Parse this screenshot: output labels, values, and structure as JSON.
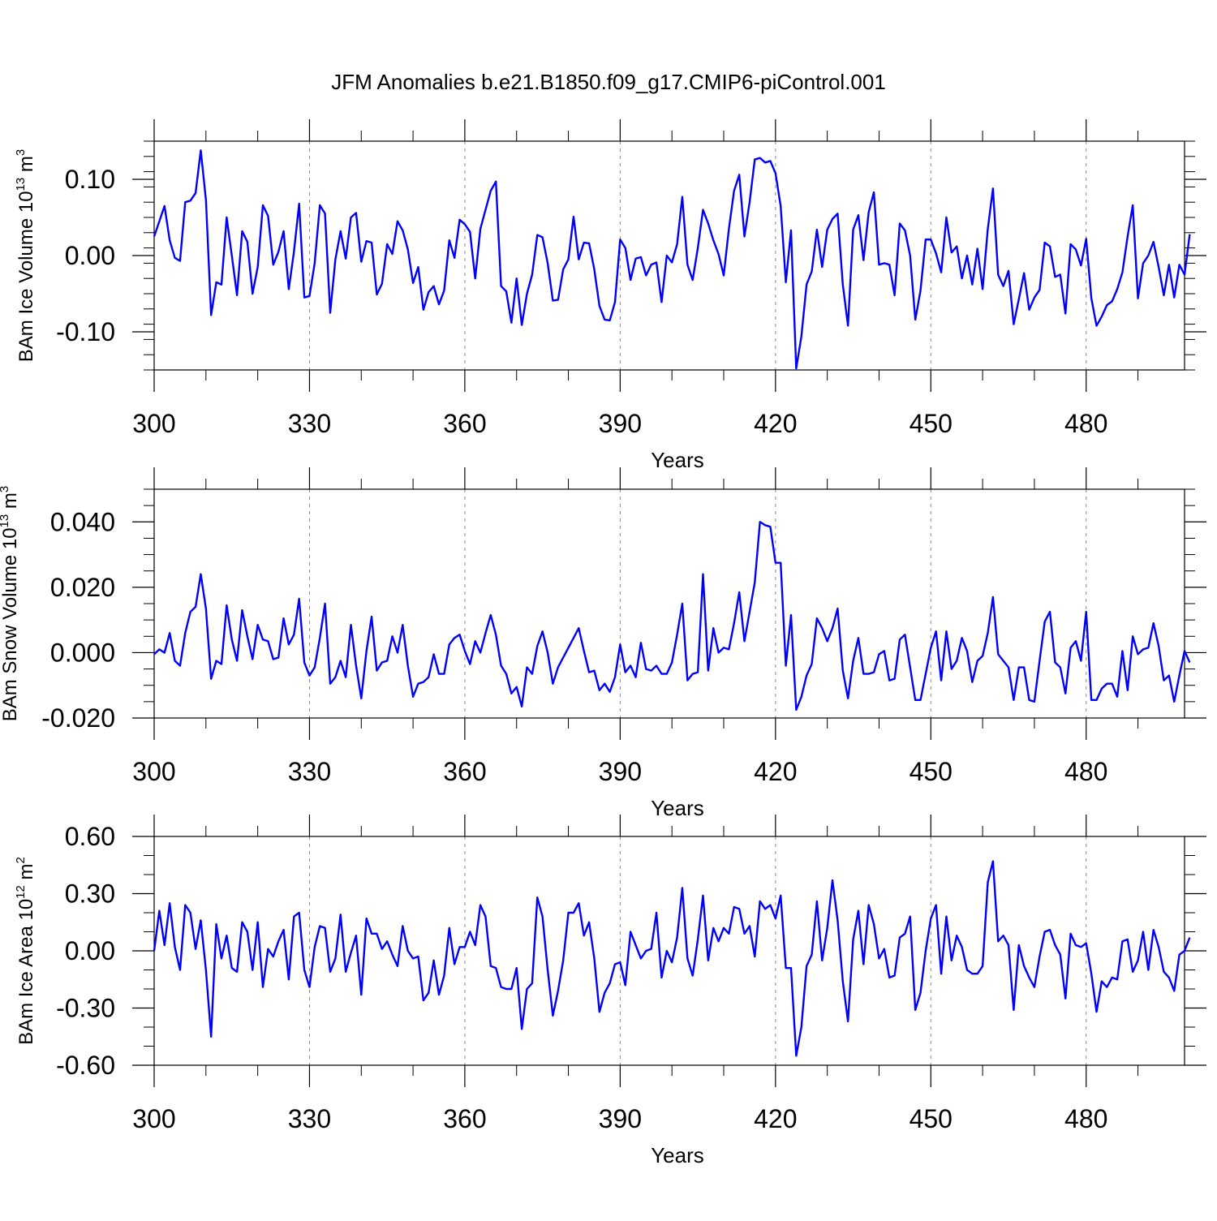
{
  "figure": {
    "title": "JFM Anomalies b.e21.B1850.f09_g17.CMIP6-piControl.001"
  },
  "colors": {
    "line": "#0000ff",
    "axis": "#000000",
    "grid": "#888888"
  },
  "chart_data": [
    {
      "type": "line",
      "ylabel": "BAm Ice Volume 10",
      "ylabel_exp": "13",
      "ylabel_unit": " m",
      "unit_exp": "3",
      "xlabel": "Years",
      "xlim": [
        300,
        499
      ],
      "ylim": [
        -0.15,
        0.15
      ],
      "xticks": [
        300,
        330,
        360,
        390,
        420,
        450,
        480
      ],
      "xtick_labels": [
        "300",
        "330",
        "360",
        "390",
        "420",
        "450",
        "480"
      ],
      "yticks": [
        0.1,
        0.0,
        -0.1
      ],
      "ytick_labels": [
        "0.10",
        "0.00",
        "-0.10"
      ],
      "yminor_step": 0.02,
      "grid": "dashed vertical at major x ticks",
      "series": [
        {
          "name": "Ice Volume",
          "x_start": 300,
          "values": [
            0.025,
            0.045,
            0.065,
            0.02,
            -0.003,
            -0.007,
            0.07,
            0.072,
            0.082,
            0.138,
            0.073,
            -0.078,
            -0.035,
            -0.038,
            0.05,
            0.0,
            -0.052,
            0.032,
            0.018,
            -0.05,
            -0.015,
            0.066,
            0.052,
            -0.012,
            0.005,
            0.032,
            -0.044,
            0.005,
            0.068,
            -0.055,
            -0.053,
            -0.01,
            0.066,
            0.055,
            -0.075,
            -0.005,
            0.032,
            -0.004,
            0.05,
            0.056,
            -0.008,
            0.019,
            0.017,
            -0.051,
            -0.037,
            0.015,
            0.002,
            0.045,
            0.033,
            0.008,
            -0.036,
            -0.015,
            -0.071,
            -0.048,
            -0.04,
            -0.064,
            -0.046,
            0.02,
            -0.003,
            0.047,
            0.041,
            0.031,
            -0.03,
            0.035,
            0.06,
            0.085,
            0.097,
            -0.04,
            -0.047,
            -0.088,
            -0.03,
            -0.091,
            -0.05,
            -0.025,
            0.027,
            0.024,
            -0.01,
            -0.059,
            -0.058,
            -0.018,
            -0.005,
            0.051,
            -0.005,
            0.017,
            0.016,
            -0.018,
            -0.066,
            -0.084,
            -0.085,
            -0.061,
            0.021,
            0.01,
            -0.032,
            -0.004,
            -0.002,
            -0.026,
            -0.012,
            -0.009,
            -0.061,
            0.0,
            -0.009,
            0.015,
            0.077,
            -0.012,
            -0.032,
            0.01,
            0.06,
            0.042,
            0.02,
            0.002,
            -0.026,
            0.035,
            0.085,
            0.106,
            0.025,
            0.07,
            0.126,
            0.128,
            0.122,
            0.124,
            0.108,
            0.065,
            -0.035,
            0.033,
            -0.148,
            -0.106,
            -0.038,
            -0.021,
            0.034,
            -0.015,
            0.034,
            0.048,
            0.055,
            -0.038,
            -0.092,
            0.034,
            0.053,
            -0.006,
            0.057,
            0.083,
            -0.012,
            -0.01,
            -0.012,
            -0.052,
            0.042,
            0.033,
            0.0,
            -0.084,
            -0.046,
            0.021,
            0.021,
            0.003,
            -0.022,
            0.05,
            0.004,
            0.012,
            -0.03,
            0.0,
            -0.038,
            0.009,
            -0.044,
            0.035,
            0.088,
            -0.025,
            -0.04,
            -0.02,
            -0.09,
            -0.057,
            -0.023,
            -0.071,
            -0.055,
            -0.045,
            0.017,
            0.012,
            -0.028,
            -0.025,
            -0.076,
            0.015,
            0.008,
            -0.013,
            0.022,
            -0.056,
            -0.092,
            -0.08,
            -0.065,
            -0.06,
            -0.044,
            -0.022,
            0.025,
            0.066,
            -0.056,
            -0.01,
            0.0,
            0.018,
            -0.015,
            -0.052,
            -0.012,
            -0.055,
            -0.012,
            -0.025,
            0.028
          ]
        }
      ]
    },
    {
      "type": "line",
      "ylabel": "BAm Snow Volume 10",
      "ylabel_exp": "13",
      "ylabel_unit": " m",
      "unit_exp": "3",
      "xlabel": "Years",
      "xlim": [
        300,
        499
      ],
      "ylim": [
        -0.02,
        0.05
      ],
      "xticks": [
        300,
        330,
        360,
        390,
        420,
        450,
        480
      ],
      "xtick_labels": [
        "300",
        "330",
        "360",
        "390",
        "420",
        "450",
        "480"
      ],
      "yticks": [
        0.04,
        0.02,
        0.0,
        -0.02
      ],
      "ytick_labels": [
        "0.040",
        "0.020",
        "0.000",
        "-0.020"
      ],
      "yminor_step": 0.005,
      "grid": "dashed vertical at major x ticks",
      "series": [
        {
          "name": "Snow Volume",
          "x_start": 300,
          "values": [
            -0.0005,
            0.001,
            0.0,
            0.006,
            -0.0025,
            -0.004,
            0.006,
            0.0125,
            0.014,
            0.024,
            0.0135,
            -0.008,
            -0.0025,
            -0.0035,
            0.0145,
            0.004,
            -0.0025,
            0.013,
            0.005,
            -0.002,
            0.0085,
            0.004,
            0.0035,
            -0.002,
            -0.0015,
            0.0105,
            0.0025,
            0.0055,
            0.0165,
            -0.003,
            -0.007,
            -0.0045,
            0.0045,
            0.015,
            -0.0095,
            -0.0075,
            -0.0025,
            -0.0075,
            0.0085,
            -0.004,
            -0.014,
            0.0005,
            0.011,
            -0.0055,
            -0.003,
            -0.0025,
            0.005,
            0.0,
            0.0085,
            -0.004,
            -0.0135,
            -0.0095,
            -0.009,
            -0.0075,
            -0.0005,
            -0.0065,
            -0.0065,
            0.0025,
            0.0045,
            0.0055,
            0.0005,
            -0.0035,
            0.0035,
            0.0,
            0.006,
            0.0115,
            0.0055,
            -0.004,
            -0.0065,
            -0.0125,
            -0.0105,
            -0.0165,
            -0.0045,
            -0.0065,
            0.002,
            0.0065,
            0.0,
            -0.0095,
            -0.0045,
            -0.0015,
            0.0015,
            0.0045,
            0.0075,
            0.0005,
            -0.006,
            -0.0055,
            -0.0115,
            -0.0095,
            -0.012,
            -0.0075,
            0.0025,
            -0.006,
            -0.004,
            -0.0075,
            0.003,
            -0.005,
            -0.0055,
            -0.004,
            -0.0065,
            -0.0065,
            -0.003,
            0.0055,
            0.015,
            -0.0085,
            -0.0065,
            -0.006,
            0.024,
            -0.0055,
            0.0075,
            0.0,
            0.0015,
            0.001,
            0.009,
            0.0185,
            0.0035,
            0.0125,
            0.0215,
            0.04,
            0.039,
            0.0385,
            0.0275,
            0.0275,
            -0.004,
            0.0115,
            -0.0175,
            -0.0135,
            -0.007,
            -0.0035,
            0.0105,
            0.0075,
            0.0035,
            0.0075,
            0.0135,
            -0.0055,
            -0.014,
            -0.0025,
            0.0045,
            -0.0065,
            -0.0065,
            -0.006,
            -0.0005,
            0.0005,
            -0.0085,
            -0.008,
            0.004,
            0.0055,
            -0.0045,
            -0.0145,
            -0.0145,
            -0.0065,
            0.0015,
            0.0065,
            -0.0085,
            0.0065,
            -0.005,
            -0.0025,
            0.0045,
            0.0005,
            -0.009,
            -0.0025,
            -0.001,
            0.006,
            0.017,
            -0.0005,
            -0.0025,
            -0.0045,
            -0.0145,
            -0.0045,
            -0.0045,
            -0.0145,
            -0.015,
            -0.0025,
            0.0095,
            0.0125,
            -0.003,
            -0.0045,
            -0.0125,
            0.0015,
            0.0035,
            -0.0025,
            0.0125,
            -0.0145,
            -0.0145,
            -0.011,
            -0.0095,
            -0.0095,
            -0.0135,
            0.0005,
            -0.0115,
            0.005,
            -0.0005,
            0.001,
            0.0015,
            0.009,
            0.002,
            -0.0085,
            -0.007,
            -0.015,
            -0.007,
            0.0005,
            -0.003
          ]
        }
      ]
    },
    {
      "type": "line",
      "ylabel": "BAm Ice Area 10",
      "ylabel_exp": "12",
      "ylabel_unit": " m",
      "unit_exp": "2",
      "xlabel": "Years",
      "xlim": [
        300,
        499
      ],
      "ylim": [
        -0.6,
        0.6
      ],
      "xticks": [
        300,
        330,
        360,
        390,
        420,
        450,
        480
      ],
      "xtick_labels": [
        "300",
        "330",
        "360",
        "390",
        "420",
        "450",
        "480"
      ],
      "yticks": [
        0.6,
        0.3,
        0.0,
        -0.3,
        -0.6
      ],
      "ytick_labels": [
        "0.60",
        "0.30",
        "0.00",
        "-0.30",
        "-0.60"
      ],
      "yminor_step": 0.1,
      "grid": "dashed vertical at major x ticks",
      "series": [
        {
          "name": "Ice Area",
          "x_start": 300,
          "values": [
            0.0,
            0.21,
            0.03,
            0.25,
            0.02,
            -0.1,
            0.24,
            0.2,
            0.01,
            0.16,
            -0.1,
            -0.45,
            0.14,
            -0.04,
            0.08,
            -0.09,
            -0.11,
            0.15,
            0.1,
            -0.1,
            0.15,
            -0.19,
            0.01,
            -0.03,
            0.05,
            0.11,
            -0.15,
            0.18,
            0.2,
            -0.1,
            -0.19,
            0.02,
            0.13,
            0.12,
            -0.11,
            -0.04,
            0.19,
            -0.11,
            -0.01,
            0.08,
            -0.23,
            0.17,
            0.09,
            0.09,
            0.01,
            0.05,
            -0.02,
            -0.08,
            0.13,
            0.0,
            -0.04,
            -0.03,
            -0.26,
            -0.22,
            -0.05,
            -0.23,
            -0.13,
            0.12,
            -0.07,
            0.02,
            0.02,
            0.1,
            0.03,
            0.24,
            0.18,
            -0.08,
            -0.09,
            -0.19,
            -0.2,
            -0.2,
            -0.09,
            -0.41,
            -0.2,
            -0.17,
            0.28,
            0.18,
            -0.1,
            -0.34,
            -0.21,
            -0.05,
            0.2,
            0.2,
            0.25,
            0.08,
            0.15,
            -0.04,
            -0.32,
            -0.22,
            -0.17,
            -0.07,
            -0.06,
            -0.18,
            0.1,
            0.03,
            -0.04,
            0.0,
            0.01,
            0.2,
            -0.14,
            0.0,
            -0.06,
            0.07,
            0.33,
            -0.04,
            -0.13,
            0.06,
            0.29,
            -0.05,
            0.12,
            0.05,
            0.12,
            0.09,
            0.23,
            0.22,
            0.09,
            0.13,
            -0.03,
            0.26,
            0.22,
            0.24,
            0.17,
            0.29,
            -0.09,
            -0.09,
            -0.55,
            -0.4,
            -0.08,
            -0.02,
            0.26,
            -0.05,
            0.12,
            0.37,
            0.16,
            -0.16,
            -0.37,
            0.06,
            0.21,
            -0.07,
            0.24,
            0.14,
            -0.04,
            0.01,
            -0.14,
            -0.13,
            0.07,
            0.09,
            0.18,
            -0.31,
            -0.22,
            0.0,
            0.17,
            0.24,
            -0.12,
            0.18,
            -0.05,
            0.08,
            0.02,
            -0.1,
            -0.12,
            -0.12,
            -0.08,
            0.36,
            0.47,
            0.05,
            0.08,
            0.03,
            -0.31,
            0.03,
            -0.08,
            -0.14,
            -0.19,
            -0.03,
            0.1,
            0.11,
            0.03,
            -0.02,
            -0.25,
            0.09,
            0.03,
            0.02,
            0.04,
            -0.12,
            -0.32,
            -0.16,
            -0.19,
            -0.14,
            -0.15,
            0.05,
            0.06,
            -0.11,
            -0.05,
            0.1,
            -0.1,
            0.11,
            0.02,
            -0.11,
            -0.14,
            -0.21,
            -0.02,
            0.0,
            0.07
          ]
        }
      ]
    }
  ]
}
